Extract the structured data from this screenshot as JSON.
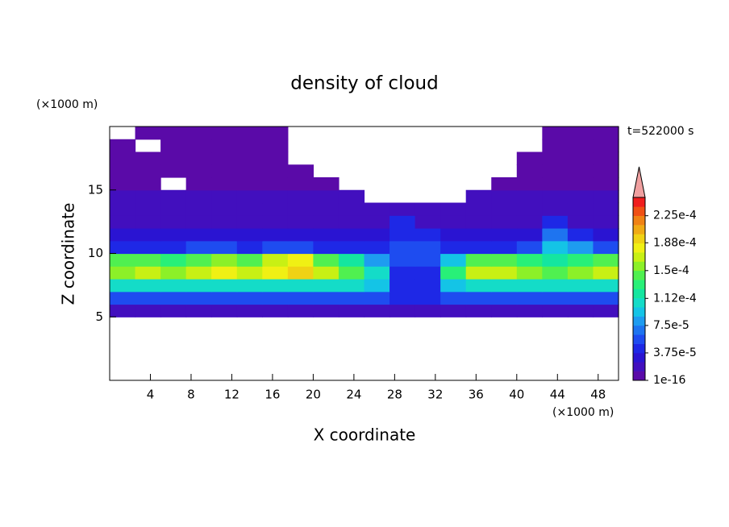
{
  "chart_data": {
    "type": "contour",
    "title": "density of cloud",
    "x_label": "X coordinate",
    "y_label": "Z coordinate",
    "x_unit": "(×1000 m)",
    "y_unit": "(×1000 m)",
    "time_label": "t=522000 s",
    "xlim": [
      0,
      50
    ],
    "ylim": [
      0,
      20
    ],
    "xticks": [
      4,
      8,
      12,
      16,
      20,
      24,
      28,
      32,
      36,
      40,
      44,
      48
    ],
    "yticks": [
      5,
      10,
      15
    ],
    "x": [
      1.25,
      3.75,
      6.25,
      8.75,
      11.25,
      13.75,
      16.25,
      18.75,
      21.25,
      23.75,
      26.25,
      28.75,
      31.25,
      33.75,
      36.25,
      38.75,
      41.25,
      43.75,
      46.25,
      48.75
    ],
    "y": [
      5.5,
      6.5,
      7.5,
      8.5,
      9.5,
      10.5,
      11.5,
      12.5,
      13.5,
      14.5,
      15.5,
      16.5,
      17.5,
      18.5,
      19.5
    ],
    "z": [
      [
        2e-05,
        2e-05,
        2e-05,
        2e-05,
        2e-05,
        2e-05,
        2e-05,
        2e-05,
        2e-05,
        2e-05,
        2e-05,
        2e-05,
        2e-05,
        2e-05,
        2e-05,
        2e-05,
        2e-05,
        2e-05,
        2e-05,
        2e-05
      ],
      [
        6e-05,
        6e-05,
        6e-05,
        6e-05,
        6e-05,
        6e-05,
        6e-05,
        6e-05,
        6e-05,
        6e-05,
        6e-05,
        4e-05,
        4e-05,
        6e-05,
        6e-05,
        6e-05,
        6e-05,
        6e-05,
        6e-05,
        6e-05
      ],
      [
        0.00011,
        0.00011,
        0.00011,
        0.00011,
        0.00011,
        0.00011,
        0.00011,
        0.00011,
        0.00011,
        0.00011,
        9e-05,
        5e-05,
        5e-05,
        9e-05,
        0.00011,
        0.00011,
        0.00011,
        0.00011,
        0.00011,
        0.00011
      ],
      [
        0.00016,
        0.00017,
        0.00016,
        0.00017,
        0.00018,
        0.00017,
        0.00018,
        0.00019,
        0.00017,
        0.00015,
        0.00011,
        5e-05,
        5e-05,
        0.00013,
        0.00017,
        0.00017,
        0.00016,
        0.00015,
        0.00016,
        0.00017
      ],
      [
        0.00014,
        0.00015,
        0.00013,
        0.00015,
        0.00016,
        0.00015,
        0.00017,
        0.00018,
        0.00015,
        0.00012,
        8e-05,
        6e-05,
        6e-05,
        0.0001,
        0.00014,
        0.00014,
        0.00013,
        0.00012,
        0.00013,
        0.00014
      ],
      [
        4e-05,
        5e-05,
        4e-05,
        6e-05,
        6e-05,
        5e-05,
        6e-05,
        6e-05,
        5e-05,
        4e-05,
        5e-05,
        6e-05,
        6e-05,
        4e-05,
        5e-05,
        5e-05,
        6e-05,
        9e-05,
        8e-05,
        6e-05
      ],
      [
        3e-05,
        3e-05,
        3e-05,
        3e-05,
        3e-05,
        3e-05,
        3e-05,
        3e-05,
        3e-05,
        3e-05,
        3e-05,
        5e-05,
        5e-05,
        3e-05,
        3e-05,
        3e-05,
        3e-05,
        7e-05,
        5e-05,
        3e-05
      ],
      [
        2.5e-05,
        2.5e-05,
        2.5e-05,
        2.5e-05,
        2.5e-05,
        2.5e-05,
        2.5e-05,
        2.5e-05,
        2.5e-05,
        2.5e-05,
        2.5e-05,
        4e-05,
        2.5e-05,
        2.5e-05,
        2.5e-05,
        2.5e-05,
        2.5e-05,
        4e-05,
        2.5e-05,
        2.5e-05
      ],
      [
        2e-05,
        2e-05,
        2e-05,
        2e-05,
        2e-05,
        2e-05,
        2e-05,
        2e-05,
        2e-05,
        2e-05,
        2e-05,
        2e-05,
        2e-05,
        2e-05,
        2e-05,
        2e-05,
        2e-05,
        2e-05,
        2e-05,
        2e-05
      ],
      [
        1.5e-05,
        1.5e-05,
        1.5e-05,
        1.5e-05,
        1.5e-05,
        1.5e-05,
        1.5e-05,
        1.5e-05,
        1.5e-05,
        1.5e-05,
        null,
        null,
        null,
        null,
        1.5e-05,
        1.5e-05,
        1.5e-05,
        1.5e-05,
        1.5e-05,
        1.5e-05
      ],
      [
        1e-05,
        1e-05,
        null,
        1e-05,
        1e-05,
        1e-05,
        1e-05,
        1e-05,
        1e-05,
        null,
        null,
        null,
        null,
        null,
        null,
        1e-05,
        1e-05,
        1e-05,
        1e-05,
        1e-05
      ],
      [
        8e-06,
        8e-06,
        8e-06,
        8e-06,
        8e-06,
        8e-06,
        8e-06,
        8e-06,
        null,
        null,
        null,
        null,
        null,
        null,
        null,
        null,
        8e-06,
        8e-06,
        8e-06,
        8e-06
      ],
      [
        5e-06,
        5e-06,
        5e-06,
        5e-06,
        5e-06,
        5e-06,
        5e-06,
        null,
        null,
        null,
        null,
        null,
        null,
        null,
        null,
        null,
        5e-06,
        5e-06,
        5e-06,
        5e-06
      ],
      [
        3e-06,
        null,
        3e-06,
        3e-06,
        3e-06,
        3e-06,
        3e-06,
        null,
        null,
        null,
        null,
        null,
        null,
        null,
        null,
        null,
        null,
        3e-06,
        3e-06,
        3e-06
      ],
      [
        null,
        3e-06,
        3e-06,
        3e-06,
        3e-06,
        3e-06,
        3e-06,
        null,
        null,
        null,
        null,
        null,
        null,
        null,
        null,
        null,
        null,
        3e-06,
        3e-06,
        3e-06
      ]
    ],
    "clim": [
      1e-16,
      0.00025
    ],
    "colors": [
      "#5a0aa8",
      "#420fbe",
      "#2a14d2",
      "#1e28e6",
      "#1e4cf0",
      "#1e74f0",
      "#1e9cf0",
      "#14c4e6",
      "#14dcc8",
      "#14e6a0",
      "#28f078",
      "#50f050",
      "#8cf028",
      "#c8f014",
      "#f0f014",
      "#f0d214",
      "#f0aa14",
      "#f08214",
      "#f05014",
      "#f01e1e"
    ],
    "extend_color": "#f0a0a0",
    "cticks": [
      1e-16,
      {
        "value": 3.75e-05,
        "label": "3.75e-5"
      },
      {
        "value": 7.5e-05,
        "label": "7.5e-5"
      },
      {
        "value": 0.000112,
        "label": "1.12e-4"
      },
      {
        "value": 0.00015,
        "label": "1.5e-4"
      },
      {
        "value": 0.000188,
        "label": "1.88e-4"
      },
      {
        "value": 0.000225,
        "label": "2.25e-4"
      }
    ]
  }
}
